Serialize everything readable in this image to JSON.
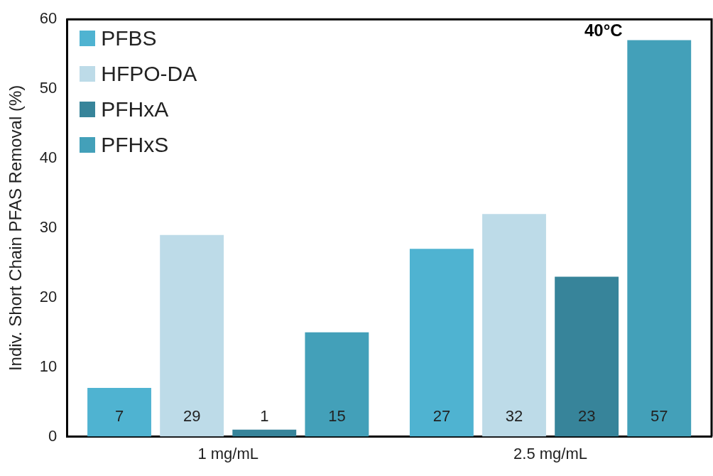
{
  "chart_data": {
    "type": "bar",
    "ylabel": "Indiv. Short Chain PFAS Removal (%)",
    "categories": [
      "1 mg/mL",
      "2.5 mg/mL"
    ],
    "series": [
      {
        "name": "PFBS",
        "color": "#4fb3d1",
        "values": [
          7,
          27
        ]
      },
      {
        "name": "HFPO-DA",
        "color": "#bddbe8",
        "values": [
          29,
          32
        ]
      },
      {
        "name": "PFHxA",
        "color": "#37849a",
        "values": [
          1,
          23
        ]
      },
      {
        "name": "PFHxS",
        "color": "#43a0b9",
        "values": [
          15,
          57
        ]
      }
    ],
    "ylim": [
      0,
      60
    ],
    "yticks": [
      0,
      10,
      20,
      30,
      40,
      50,
      60
    ],
    "grid": false,
    "legend": "top left",
    "data_labels": true,
    "annotations": [
      "40°C"
    ]
  }
}
